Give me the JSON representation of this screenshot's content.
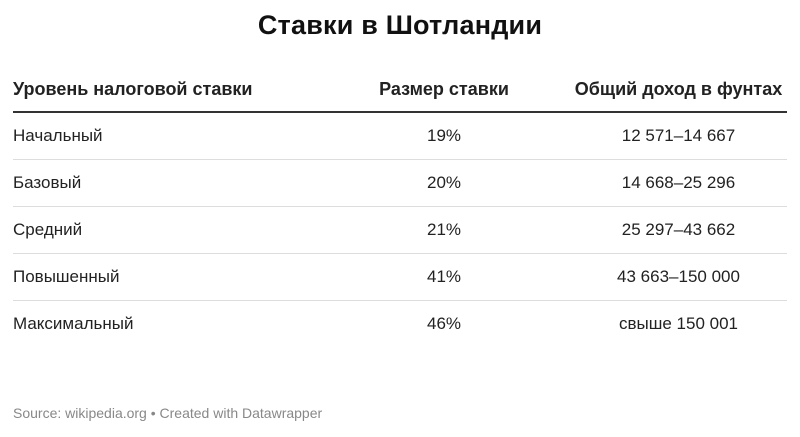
{
  "title": "Ставки в Шотландии",
  "columns": [
    "Уровень налоговой ставки",
    "Размер ставки",
    "Общий доход в фунтах"
  ],
  "rows": [
    [
      "Начальный",
      "19%",
      "12 571–14 667"
    ],
    [
      "Базовый",
      "20%",
      "14 668–25 296"
    ],
    [
      "Средний",
      "21%",
      "25 297–43 662"
    ],
    [
      "Повышенный",
      "41%",
      "43 663–150 000"
    ],
    [
      "Максимальный",
      "46%",
      "свыше 150 001"
    ]
  ],
  "footer": "Source: wikipedia.org • Created with Datawrapper",
  "chart_data": {
    "type": "table",
    "title": "Ставки в Шотландии",
    "columns": [
      "Уровень налоговой ставки",
      "Размер ставки",
      "Общий доход в фунтах"
    ],
    "rows": [
      [
        "Начальный",
        "19%",
        "12 571–14 667"
      ],
      [
        "Базовый",
        "20%",
        "14 668–25 296"
      ],
      [
        "Средний",
        "21%",
        "25 297–43 662"
      ],
      [
        "Повышенный",
        "41%",
        "43 663–150 000"
      ],
      [
        "Максимальный",
        "46%",
        "свыше 150 001"
      ]
    ]
  }
}
